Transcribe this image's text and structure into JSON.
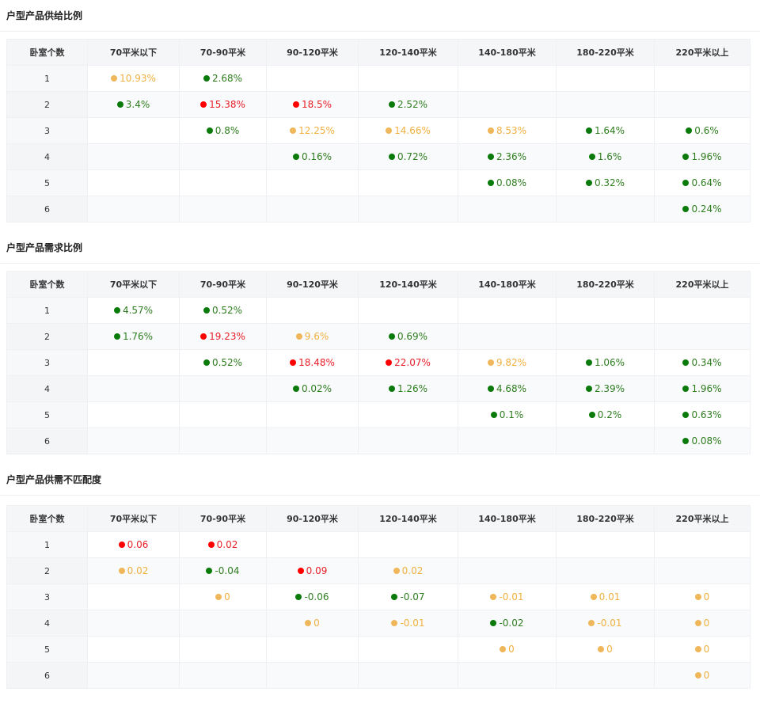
{
  "colors": {
    "green": "#0a7a0a",
    "red": "#ff0000",
    "orange": "#f0b65a"
  },
  "tables": [
    {
      "title": "户型产品供给比例",
      "headers": [
        "卧室个数",
        "70平米以下",
        "70-90平米",
        "90-120平米",
        "120-140平米",
        "140-180平米",
        "180-220平米",
        "220平米以上"
      ],
      "rows": [
        {
          "label": "1",
          "cells": [
            {
              "v": "10.93%",
              "c": "o"
            },
            {
              "v": "2.68%",
              "c": "g"
            },
            null,
            null,
            null,
            null,
            null
          ]
        },
        {
          "label": "2",
          "cells": [
            {
              "v": "3.4%",
              "c": "g"
            },
            {
              "v": "15.38%",
              "c": "r"
            },
            {
              "v": "18.5%",
              "c": "r"
            },
            {
              "v": "2.52%",
              "c": "g"
            },
            null,
            null,
            null
          ]
        },
        {
          "label": "3",
          "cells": [
            null,
            {
              "v": "0.8%",
              "c": "g"
            },
            {
              "v": "12.25%",
              "c": "o"
            },
            {
              "v": "14.66%",
              "c": "o"
            },
            {
              "v": "8.53%",
              "c": "o"
            },
            {
              "v": "1.64%",
              "c": "g"
            },
            {
              "v": "0.6%",
              "c": "g"
            }
          ]
        },
        {
          "label": "4",
          "cells": [
            null,
            null,
            {
              "v": "0.16%",
              "c": "g"
            },
            {
              "v": "0.72%",
              "c": "g"
            },
            {
              "v": "2.36%",
              "c": "g"
            },
            {
              "v": "1.6%",
              "c": "g"
            },
            {
              "v": "1.96%",
              "c": "g"
            }
          ]
        },
        {
          "label": "5",
          "cells": [
            null,
            null,
            null,
            null,
            {
              "v": "0.08%",
              "c": "g"
            },
            {
              "v": "0.32%",
              "c": "g"
            },
            {
              "v": "0.64%",
              "c": "g"
            }
          ]
        },
        {
          "label": "6",
          "cells": [
            null,
            null,
            null,
            null,
            null,
            null,
            {
              "v": "0.24%",
              "c": "g"
            }
          ]
        }
      ]
    },
    {
      "title": "户型产品需求比例",
      "headers": [
        "卧室个数",
        "70平米以下",
        "70-90平米",
        "90-120平米",
        "120-140平米",
        "140-180平米",
        "180-220平米",
        "220平米以上"
      ],
      "rows": [
        {
          "label": "1",
          "cells": [
            {
              "v": "4.57%",
              "c": "g"
            },
            {
              "v": "0.52%",
              "c": "g"
            },
            null,
            null,
            null,
            null,
            null
          ]
        },
        {
          "label": "2",
          "cells": [
            {
              "v": "1.76%",
              "c": "g"
            },
            {
              "v": "19.23%",
              "c": "r"
            },
            {
              "v": "9.6%",
              "c": "o"
            },
            {
              "v": "0.69%",
              "c": "g"
            },
            null,
            null,
            null
          ]
        },
        {
          "label": "3",
          "cells": [
            null,
            {
              "v": "0.52%",
              "c": "g"
            },
            {
              "v": "18.48%",
              "c": "r"
            },
            {
              "v": "22.07%",
              "c": "r"
            },
            {
              "v": "9.82%",
              "c": "o"
            },
            {
              "v": "1.06%",
              "c": "g"
            },
            {
              "v": "0.34%",
              "c": "g"
            }
          ]
        },
        {
          "label": "4",
          "cells": [
            null,
            null,
            {
              "v": "0.02%",
              "c": "g"
            },
            {
              "v": "1.26%",
              "c": "g"
            },
            {
              "v": "4.68%",
              "c": "g"
            },
            {
              "v": "2.39%",
              "c": "g"
            },
            {
              "v": "1.96%",
              "c": "g"
            }
          ]
        },
        {
          "label": "5",
          "cells": [
            null,
            null,
            null,
            null,
            {
              "v": "0.1%",
              "c": "g"
            },
            {
              "v": "0.2%",
              "c": "g"
            },
            {
              "v": "0.63%",
              "c": "g"
            }
          ]
        },
        {
          "label": "6",
          "cells": [
            null,
            null,
            null,
            null,
            null,
            null,
            {
              "v": "0.08%",
              "c": "g"
            }
          ]
        }
      ]
    },
    {
      "title": "户型产品供需不匹配度",
      "headers": [
        "卧室个数",
        "70平米以下",
        "70-90平米",
        "90-120平米",
        "120-140平米",
        "140-180平米",
        "180-220平米",
        "220平米以上"
      ],
      "rows": [
        {
          "label": "1",
          "cells": [
            {
              "v": "0.06",
              "c": "r"
            },
            {
              "v": "0.02",
              "c": "r"
            },
            null,
            null,
            null,
            null,
            null
          ]
        },
        {
          "label": "2",
          "cells": [
            {
              "v": "0.02",
              "c": "o"
            },
            {
              "v": "-0.04",
              "c": "g"
            },
            {
              "v": "0.09",
              "c": "r"
            },
            {
              "v": "0.02",
              "c": "o"
            },
            null,
            null,
            null
          ]
        },
        {
          "label": "3",
          "cells": [
            null,
            {
              "v": "0",
              "c": "o"
            },
            {
              "v": "-0.06",
              "c": "g"
            },
            {
              "v": "-0.07",
              "c": "g"
            },
            {
              "v": "-0.01",
              "c": "o"
            },
            {
              "v": "0.01",
              "c": "o"
            },
            {
              "v": "0",
              "c": "o"
            }
          ]
        },
        {
          "label": "4",
          "cells": [
            null,
            null,
            {
              "v": "0",
              "c": "o"
            },
            {
              "v": "-0.01",
              "c": "o"
            },
            {
              "v": "-0.02",
              "c": "g"
            },
            {
              "v": "-0.01",
              "c": "o"
            },
            {
              "v": "0",
              "c": "o"
            }
          ]
        },
        {
          "label": "5",
          "cells": [
            null,
            null,
            null,
            null,
            {
              "v": "0",
              "c": "o"
            },
            {
              "v": "0",
              "c": "o"
            },
            {
              "v": "0",
              "c": "o"
            }
          ]
        },
        {
          "label": "6",
          "cells": [
            null,
            null,
            null,
            null,
            null,
            null,
            {
              "v": "0",
              "c": "o"
            }
          ]
        }
      ]
    }
  ]
}
